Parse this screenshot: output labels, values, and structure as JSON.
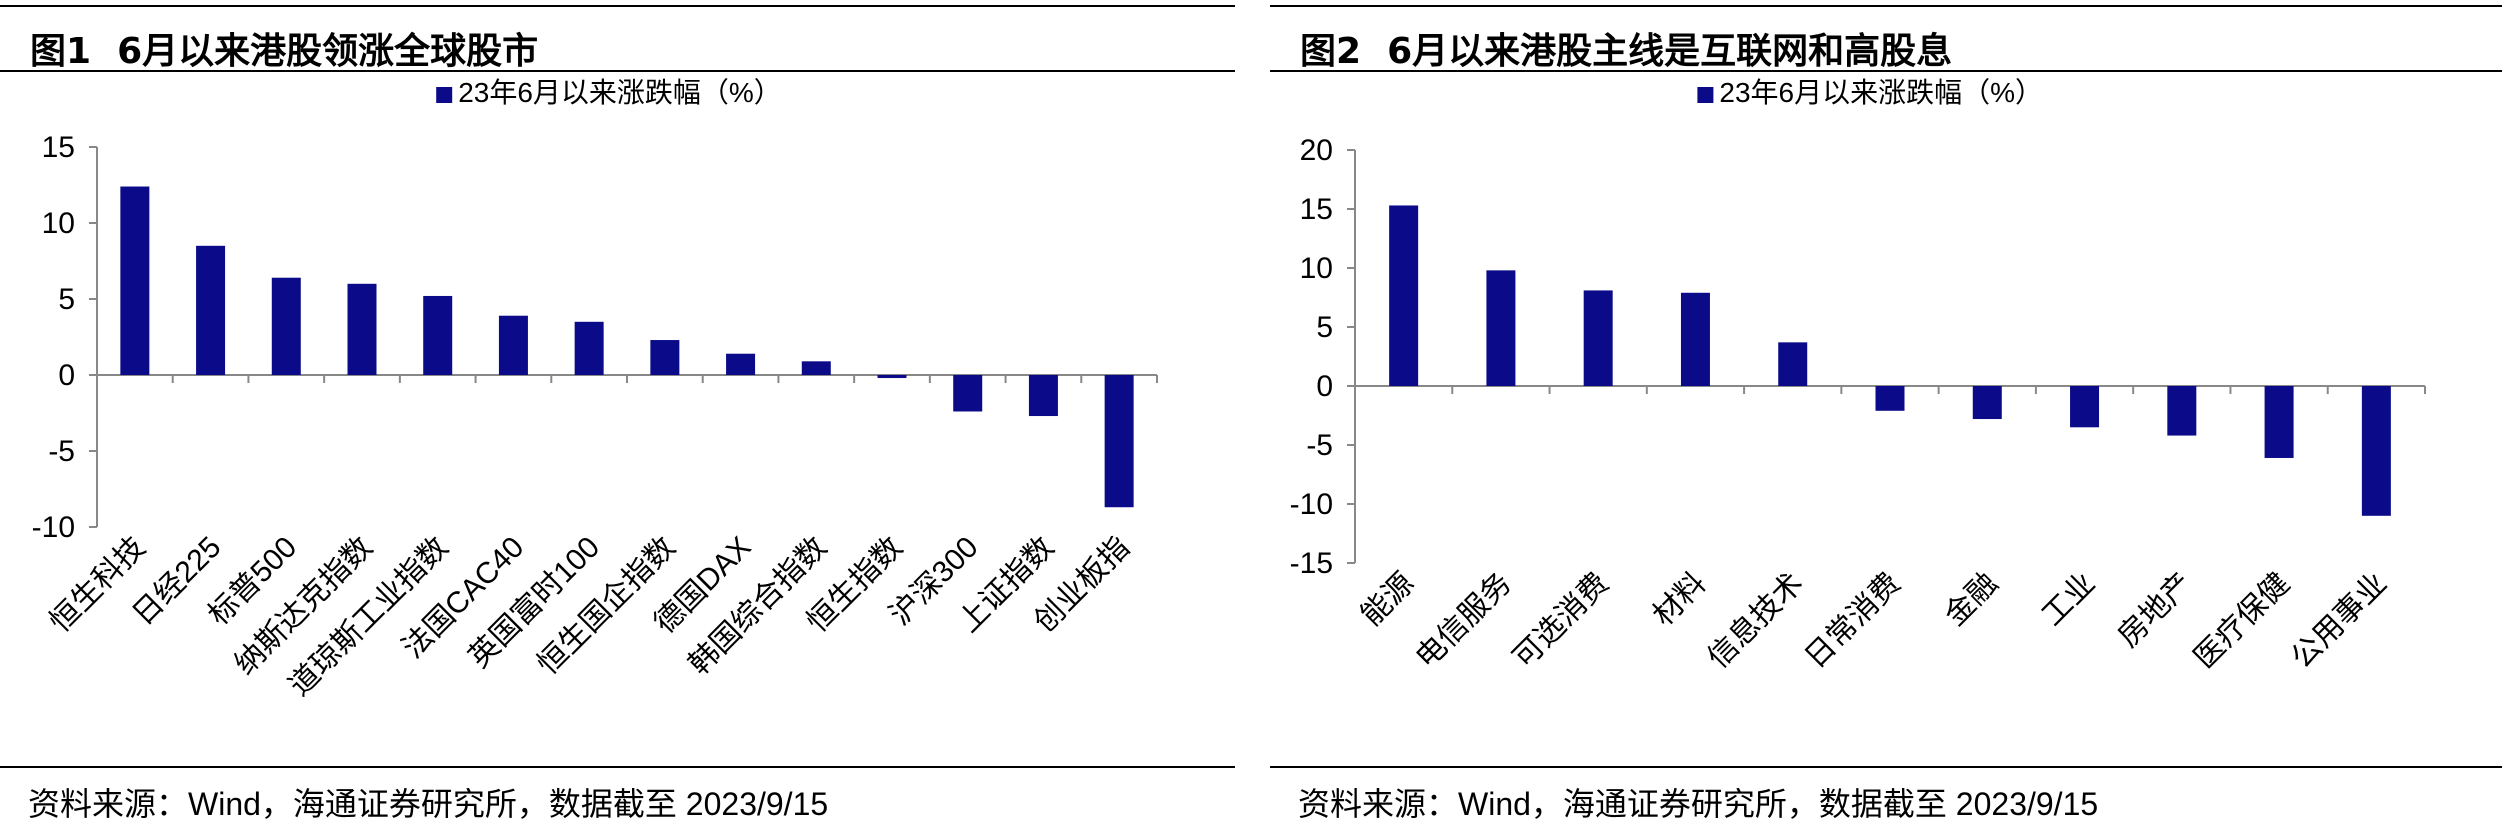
{
  "figures": [
    {
      "id": "fig1",
      "fig_label": "图1",
      "title": "6月以来港股领涨全球股市",
      "source": "资料来源：Wind，海通证券研究所，数据截至 2023/9/15"
    },
    {
      "id": "fig2",
      "fig_label": "图2",
      "title": "6月以来港股主线是互联网和高股息",
      "source": "资料来源：Wind，海通证券研究所，数据截至 2023/9/15"
    }
  ],
  "chart_data": [
    {
      "type": "bar",
      "title": "",
      "xlabel": "",
      "ylabel": "",
      "legend": "23年6月以来涨跌幅（%）",
      "legend_position": "top-center",
      "grid": false,
      "color": "#0b0b8a",
      "ylim": [
        -10,
        15
      ],
      "yticks": [
        15,
        10,
        5,
        0,
        -5,
        -10
      ],
      "categories": [
        "恒生科技",
        "日经225",
        "标普500",
        "纳斯达克指数",
        "道琼斯工业指数",
        "法国CAC40",
        "英国富时100",
        "恒生国企指数",
        "德国DAX",
        "韩国综合指数",
        "恒生指数",
        "沪深300",
        "上证指数",
        "创业板指"
      ],
      "values": [
        12.4,
        8.5,
        6.4,
        6.0,
        5.2,
        3.9,
        3.5,
        2.3,
        1.4,
        0.9,
        -0.2,
        -2.4,
        -2.7,
        -8.7
      ]
    },
    {
      "type": "bar",
      "title": "",
      "xlabel": "",
      "ylabel": "",
      "legend": "23年6月以来涨跌幅（%）",
      "legend_position": "top-center",
      "grid": false,
      "color": "#0b0b8a",
      "ylim": [
        -15,
        20
      ],
      "yticks": [
        20,
        15,
        10,
        5,
        0,
        -5,
        -10,
        -15
      ],
      "categories": [
        "能源",
        "电信服务",
        "可选消费",
        "材料",
        "信息技术",
        "日常消费",
        "金融",
        "工业",
        "房地产",
        "医疗保健",
        "公用事业"
      ],
      "values": [
        15.3,
        9.8,
        8.1,
        7.9,
        3.7,
        -2.1,
        -2.8,
        -3.5,
        -4.2,
        -6.1,
        -11.0
      ]
    }
  ]
}
